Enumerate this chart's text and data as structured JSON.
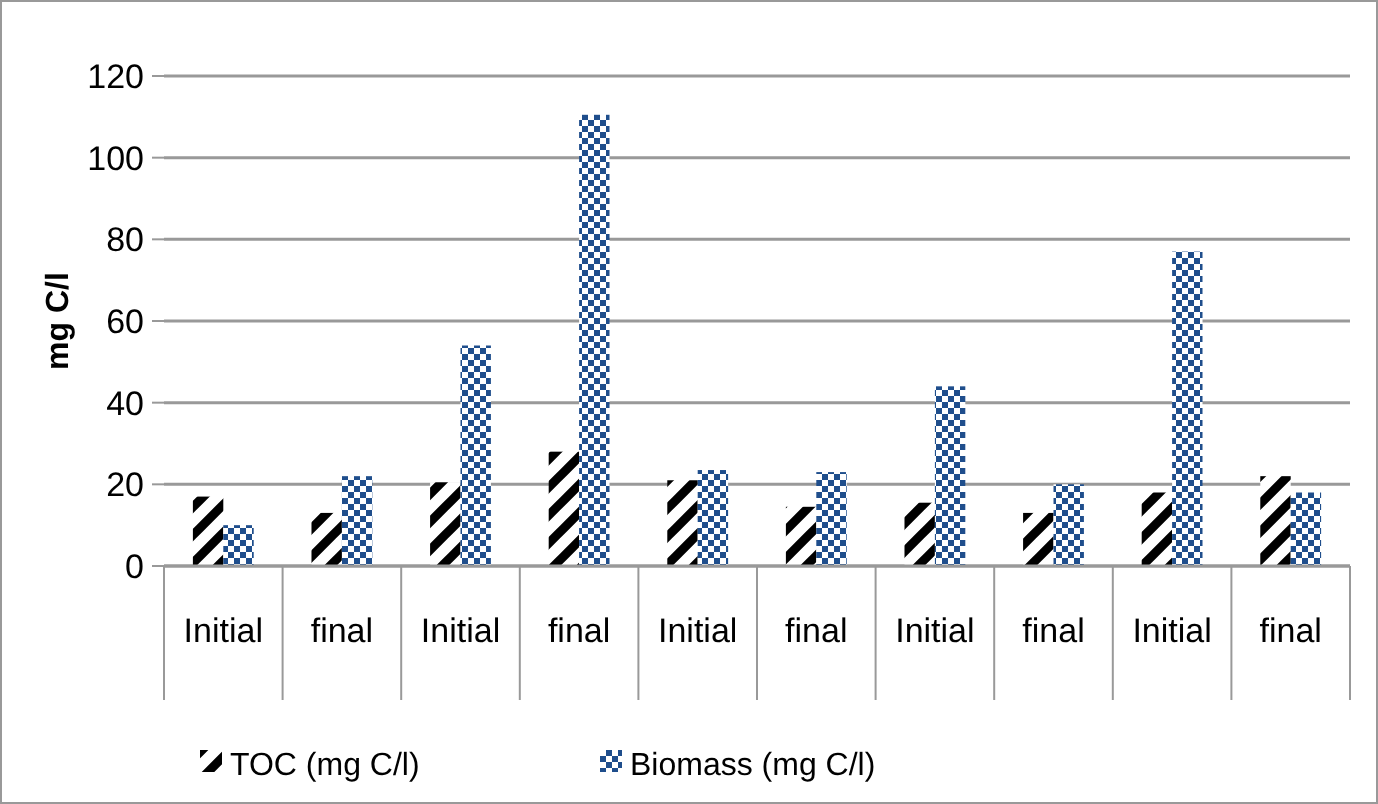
{
  "chart_data": {
    "type": "bar",
    "ylabel": "mg C/l",
    "categories": [
      "Initial",
      "final",
      "Initial",
      "final",
      "Initial",
      "final",
      "Initial",
      "final",
      "Initial",
      "final"
    ],
    "series": [
      {
        "name": "TOC (mg C/l)",
        "color": "#000000",
        "values": [
          17,
          13,
          20.5,
          28,
          21,
          14.5,
          15.5,
          13,
          18,
          22
        ]
      },
      {
        "name": "Biomass (mg C/l)",
        "color": "#1f4e8c",
        "values": [
          10,
          22,
          54,
          110.5,
          23.5,
          23,
          44,
          20,
          77,
          18
        ]
      }
    ],
    "ylim": [
      0,
      120
    ],
    "yticks": [
      0,
      20,
      40,
      60,
      80,
      100,
      120
    ],
    "grid": "y",
    "legend": "bottom"
  }
}
